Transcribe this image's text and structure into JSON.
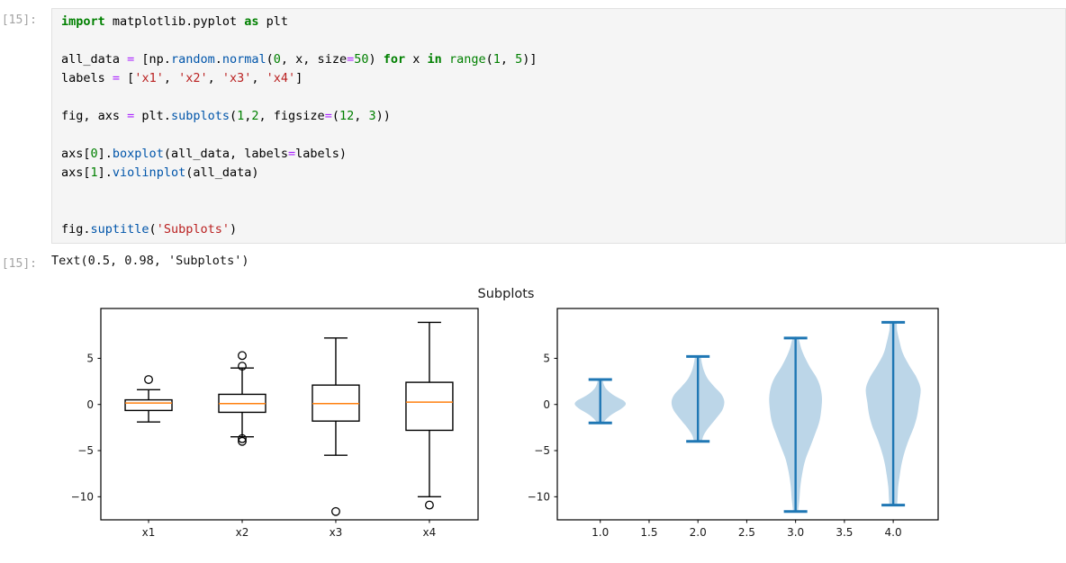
{
  "notebook": {
    "input_prompt": "[15]:",
    "output_prompt": "[15]:",
    "output_text": "Text(0.5, 0.98, 'Subplots')",
    "code_lines": [
      [
        [
          "import",
          "k"
        ],
        [
          " matplotlib.pyplot ",
          "p"
        ],
        [
          "as",
          "k"
        ],
        [
          " plt",
          "p"
        ]
      ],
      [],
      [
        [
          "all_data ",
          "p"
        ],
        [
          "=",
          "o"
        ],
        [
          " [np.",
          "p"
        ],
        [
          "random",
          "a"
        ],
        [
          ".",
          "p"
        ],
        [
          "normal",
          "a"
        ],
        [
          "(",
          "p"
        ],
        [
          "0",
          "n"
        ],
        [
          ", x, size",
          "p"
        ],
        [
          "=",
          "o"
        ],
        [
          "50",
          "n"
        ],
        [
          ") ",
          "p"
        ],
        [
          "for",
          "k"
        ],
        [
          " x ",
          "p"
        ],
        [
          "in",
          "k"
        ],
        [
          " ",
          "p"
        ],
        [
          "range",
          "b"
        ],
        [
          "(",
          "p"
        ],
        [
          "1",
          "n"
        ],
        [
          ", ",
          "p"
        ],
        [
          "5",
          "n"
        ],
        [
          ")]",
          "p"
        ]
      ],
      [
        [
          "labels ",
          "p"
        ],
        [
          "=",
          "o"
        ],
        [
          " [",
          "p"
        ],
        [
          "'x1'",
          "s"
        ],
        [
          ", ",
          "p"
        ],
        [
          "'x2'",
          "s"
        ],
        [
          ", ",
          "p"
        ],
        [
          "'x3'",
          "s"
        ],
        [
          ", ",
          "p"
        ],
        [
          "'x4'",
          "s"
        ],
        [
          "]",
          "p"
        ]
      ],
      [],
      [
        [
          "fig, axs ",
          "p"
        ],
        [
          "=",
          "o"
        ],
        [
          " plt.",
          "p"
        ],
        [
          "subplots",
          "a"
        ],
        [
          "(",
          "p"
        ],
        [
          "1",
          "n"
        ],
        [
          ",",
          "p"
        ],
        [
          "2",
          "n"
        ],
        [
          ", figsize",
          "p"
        ],
        [
          "=",
          "o"
        ],
        [
          "(",
          "p"
        ],
        [
          "12",
          "n"
        ],
        [
          ", ",
          "p"
        ],
        [
          "3",
          "n"
        ],
        [
          "))",
          "p"
        ]
      ],
      [],
      [
        [
          "axs[",
          "p"
        ],
        [
          "0",
          "n"
        ],
        [
          "].",
          "p"
        ],
        [
          "boxplot",
          "a"
        ],
        [
          "(all_data, labels",
          "p"
        ],
        [
          "=",
          "o"
        ],
        [
          "labels)",
          "p"
        ]
      ],
      [
        [
          "axs[",
          "p"
        ],
        [
          "1",
          "n"
        ],
        [
          "].",
          "p"
        ],
        [
          "violinplot",
          "a"
        ],
        [
          "(all_data)",
          "p"
        ]
      ],
      [],
      [],
      [
        [
          "fig.",
          "p"
        ],
        [
          "suptitle",
          "a"
        ],
        [
          "(",
          "p"
        ],
        [
          "'Subplots'",
          "s"
        ],
        [
          ")",
          "p"
        ]
      ]
    ]
  },
  "chart_data": {
    "figure_title": "Subplots",
    "subplots": [
      {
        "type": "boxplot",
        "categories": [
          "x1",
          "x2",
          "x3",
          "x4"
        ],
        "positions": [
          1,
          2,
          3,
          4
        ],
        "xlim": [
          0.49,
          4.52
        ],
        "ylim": [
          -12.5,
          10.4
        ],
        "yticks": [
          5,
          0,
          -5,
          -10
        ],
        "box_width": 0.5,
        "boxes": [
          {
            "label": "x1",
            "whislo": -1.9,
            "q1": -0.65,
            "med": 0.15,
            "q3": 0.5,
            "whishi": 1.6,
            "fliers": [
              2.7
            ]
          },
          {
            "label": "x2",
            "whislo": -3.5,
            "q1": -0.85,
            "med": 0.1,
            "q3": 1.1,
            "whishi": 3.95,
            "fliers": [
              5.3,
              4.15,
              -3.7,
              -4.0
            ]
          },
          {
            "label": "x3",
            "whislo": -5.5,
            "q1": -1.8,
            "med": 0.1,
            "q3": 2.1,
            "whishi": 7.2,
            "fliers": [
              -11.6
            ]
          },
          {
            "label": "x4",
            "whislo": -10.0,
            "q1": -2.8,
            "med": 0.25,
            "q3": 2.4,
            "whishi": 8.9,
            "fliers": [
              -10.9
            ]
          }
        ],
        "colors": {
          "line": "#000000",
          "median": "#ff7f0e"
        }
      },
      {
        "type": "violin",
        "positions": [
          1,
          2,
          3,
          4
        ],
        "xlim": [
          0.56,
          4.46
        ],
        "ylim": [
          -12.5,
          10.4
        ],
        "yticks": [
          5,
          0,
          -5,
          -10
        ],
        "xticks": [
          1.0,
          1.5,
          2.0,
          2.5,
          3.0,
          3.5,
          4.0
        ],
        "violins": [
          {
            "pos": 1,
            "min": -2.0,
            "max": 2.7,
            "profile": [
              [
                -2.0,
                0.03
              ],
              [
                -1.5,
                0.07
              ],
              [
                -1.0,
                0.13
              ],
              [
                -0.5,
                0.21
              ],
              [
                0.0,
                0.26
              ],
              [
                0.4,
                0.24
              ],
              [
                0.8,
                0.17
              ],
              [
                1.2,
                0.11
              ],
              [
                1.7,
                0.06
              ],
              [
                2.2,
                0.035
              ],
              [
                2.7,
                0.02
              ]
            ]
          },
          {
            "pos": 2,
            "min": -4.0,
            "max": 5.2,
            "profile": [
              [
                -4.0,
                0.04
              ],
              [
                -3.3,
                0.06
              ],
              [
                -2.5,
                0.11
              ],
              [
                -1.6,
                0.18
              ],
              [
                -0.6,
                0.25
              ],
              [
                0.3,
                0.27
              ],
              [
                1.1,
                0.24
              ],
              [
                1.9,
                0.17
              ],
              [
                2.8,
                0.1
              ],
              [
                3.7,
                0.06
              ],
              [
                4.5,
                0.04
              ],
              [
                5.2,
                0.025
              ]
            ]
          },
          {
            "pos": 3,
            "min": -11.6,
            "max": 7.2,
            "profile": [
              [
                -11.6,
                0.025
              ],
              [
                -10.2,
                0.04
              ],
              [
                -8.8,
                0.05
              ],
              [
                -7.4,
                0.07
              ],
              [
                -6.0,
                0.1
              ],
              [
                -4.6,
                0.15
              ],
              [
                -3.2,
                0.2
              ],
              [
                -1.8,
                0.245
              ],
              [
                -0.4,
                0.265
              ],
              [
                0.8,
                0.27
              ],
              [
                2.0,
                0.25
              ],
              [
                3.0,
                0.21
              ],
              [
                4.0,
                0.15
              ],
              [
                5.0,
                0.1
              ],
              [
                6.0,
                0.06
              ],
              [
                7.2,
                0.025
              ]
            ]
          },
          {
            "pos": 4,
            "min": -10.9,
            "max": 8.9,
            "profile": [
              [
                -10.9,
                0.04
              ],
              [
                -10.0,
                0.045
              ],
              [
                -9.0,
                0.05
              ],
              [
                -7.8,
                0.065
              ],
              [
                -6.5,
                0.085
              ],
              [
                -5.2,
                0.115
              ],
              [
                -3.8,
                0.16
              ],
              [
                -2.5,
                0.21
              ],
              [
                -1.2,
                0.245
              ],
              [
                0.2,
                0.265
              ],
              [
                1.7,
                0.28
              ],
              [
                3.0,
                0.235
              ],
              [
                4.2,
                0.165
              ],
              [
                5.5,
                0.1
              ],
              [
                6.8,
                0.065
              ],
              [
                8.0,
                0.04
              ],
              [
                8.9,
                0.03
              ]
            ]
          }
        ],
        "colors": {
          "line": "#1f77b4",
          "fill": "#bcd6e8"
        }
      }
    ]
  }
}
